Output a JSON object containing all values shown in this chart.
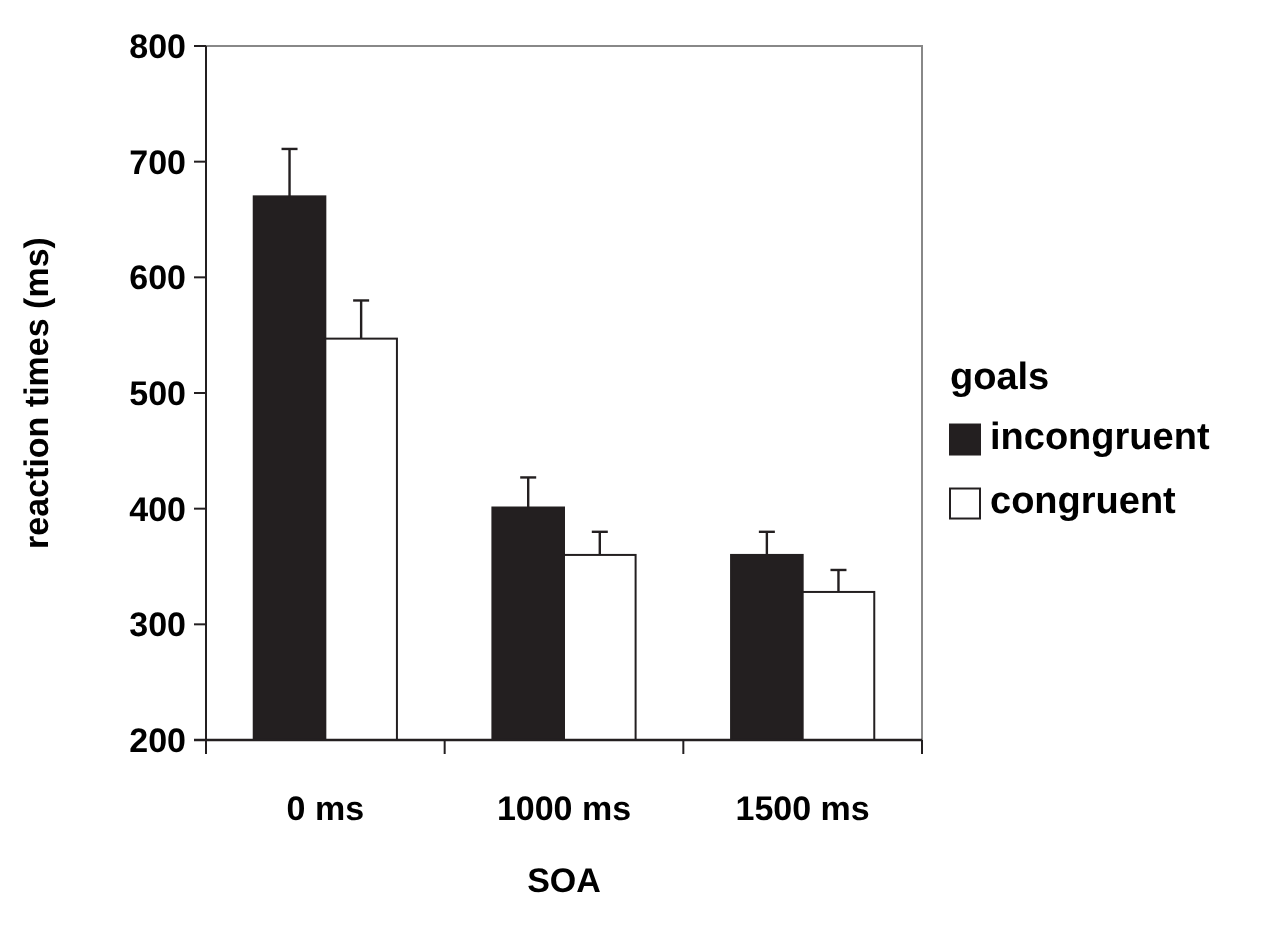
{
  "chart_data": {
    "type": "bar",
    "xlabel": "SOA",
    "ylabel": "reaction times (ms)",
    "legend_title": "goals",
    "categories": [
      "0 ms",
      "1000 ms",
      "1500 ms"
    ],
    "series": [
      {
        "name": "incongruent",
        "color": "#231f20",
        "values": [
          670,
          401,
          360
        ],
        "errors": [
          [
            670,
            711
          ],
          [
            401,
            427
          ],
          [
            360,
            380
          ]
        ]
      },
      {
        "name": "congruent",
        "color": "#ffffff",
        "values": [
          547,
          360,
          328
        ],
        "errors": [
          [
            547,
            580
          ],
          [
            360,
            380
          ],
          [
            328,
            347
          ]
        ]
      }
    ],
    "ylim": [
      200,
      800
    ],
    "yticks": [
      200,
      300,
      400,
      500,
      600,
      700,
      800
    ],
    "legend": "right",
    "grid": false
  }
}
